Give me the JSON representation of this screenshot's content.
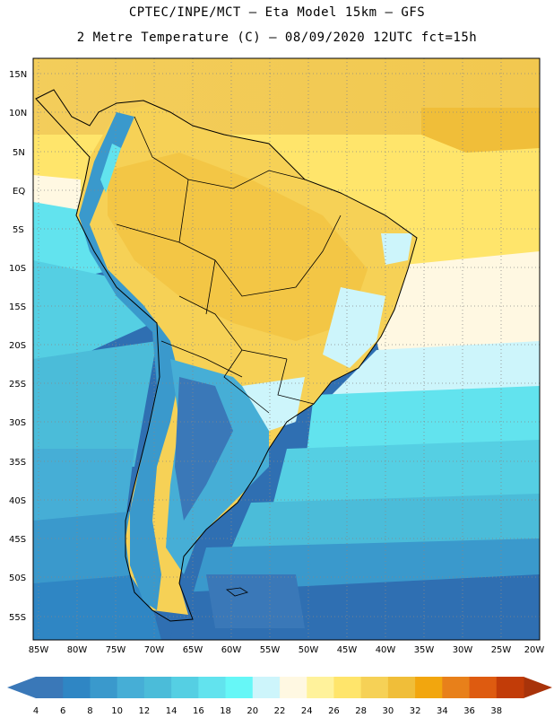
{
  "header": {
    "title_line1": "CPTEC/INPE/MCT –  Eta Model 15km – GFS",
    "title_line2": "2 Metre Temperature (C) – 08/09/2020 12UTC fct=15h"
  },
  "map": {
    "lat_labels": [
      "15N",
      "10N",
      "5N",
      "EQ",
      "5S",
      "10S",
      "15S",
      "20S",
      "25S",
      "30S",
      "35S",
      "40S",
      "45S",
      "50S",
      "55S"
    ],
    "lon_labels": [
      "85W",
      "80W",
      "75W",
      "70W",
      "65W",
      "60W",
      "55W",
      "50W",
      "45W",
      "40W",
      "35W",
      "30W",
      "25W",
      "20W"
    ],
    "grid": "dotted"
  },
  "colorbar": {
    "labels": [
      "4",
      "6",
      "8",
      "10",
      "12",
      "14",
      "16",
      "18",
      "20",
      "22",
      "24",
      "26",
      "28",
      "30",
      "32",
      "34",
      "36",
      "38"
    ],
    "colors": [
      "#3a78b8",
      "#2f86c4",
      "#3a99cc",
      "#46aed6",
      "#4bbcd9",
      "#55cfe3",
      "#62e3ee",
      "#66f7f7",
      "#cdf5fb",
      "#fff8e2",
      "#fff29b",
      "#ffe56b",
      "#f6d156",
      "#f0be39",
      "#f2a60e",
      "#e8801a",
      "#de5b10",
      "#c23c08"
    ],
    "low_arrow_color": "#3a78b8",
    "high_arrow_color": "#a8330a"
  }
}
